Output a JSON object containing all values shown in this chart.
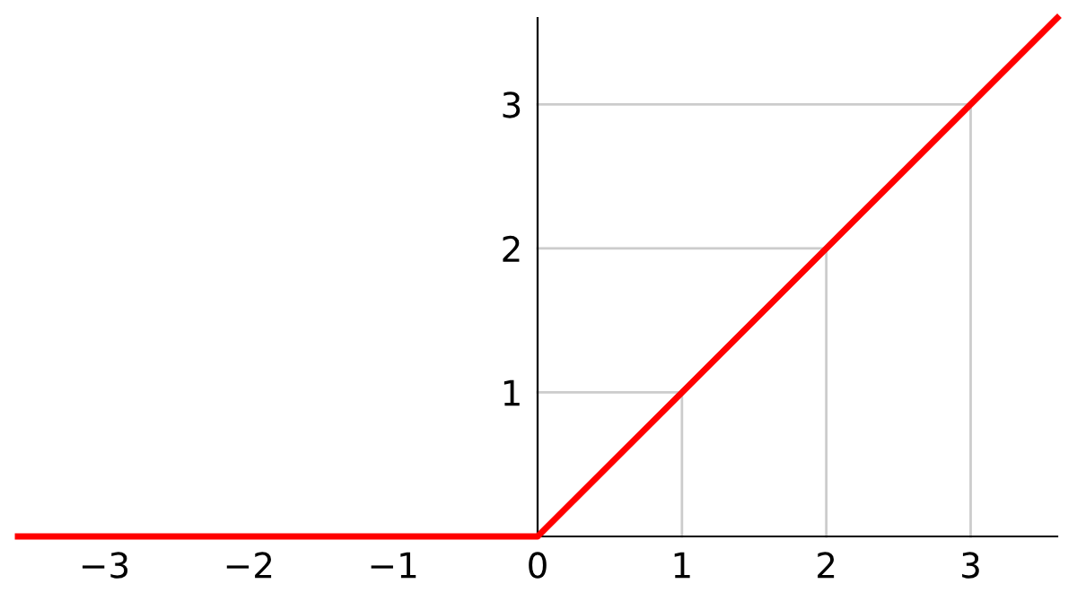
{
  "chart_data": {
    "type": "line",
    "x": [
      -3.6,
      0,
      3.6
    ],
    "series": [
      {
        "color": "#cccccc",
        "x": [
          1,
          1
        ],
        "values": [
          0,
          1
        ]
      },
      {
        "color": "#cccccc",
        "x": [
          2,
          2
        ],
        "values": [
          0,
          2
        ]
      },
      {
        "color": "#cccccc",
        "x": [
          3,
          3
        ],
        "values": [
          0,
          3
        ]
      },
      {
        "color": "#cccccc",
        "x": [
          0,
          1
        ],
        "values": [
          1,
          1
        ]
      },
      {
        "color": "#cccccc",
        "x": [
          0,
          2
        ],
        "values": [
          2,
          2
        ]
      },
      {
        "color": "#cccccc",
        "x": [
          0,
          3
        ],
        "values": [
          3,
          3
        ]
      },
      {
        "color": "#ff0000",
        "values": [
          0,
          0,
          3.6
        ]
      }
    ],
    "xlim": [
      -3.6,
      3.6
    ],
    "ylim": [
      0,
      3.6
    ],
    "xticks": [
      {
        "value": -3,
        "label": "−3"
      },
      {
        "value": -2,
        "label": "−2"
      },
      {
        "value": -1,
        "label": "−1"
      },
      0,
      1,
      2,
      3
    ],
    "yticks": [
      1,
      2,
      3
    ],
    "marker": "none",
    "line_style": "solid"
  }
}
